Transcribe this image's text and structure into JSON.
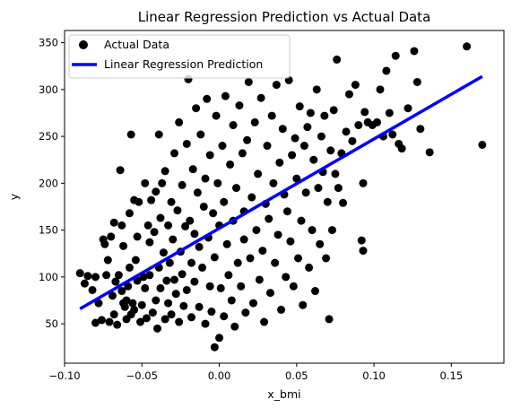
{
  "chart_data": {
    "type": "scatter",
    "title": "Linear Regression Prediction vs Actual Data",
    "xlabel": "x_bmi",
    "ylabel": "y",
    "xlim": [
      -0.1,
      0.184
    ],
    "ylim": [
      8,
      363
    ],
    "xticks": [
      -0.1,
      -0.05,
      0.0,
      0.05,
      0.1,
      0.15
    ],
    "xtick_labels": [
      "−0.10",
      "−0.05",
      "0.00",
      "0.05",
      "0.10",
      "0.15"
    ],
    "yticks": [
      50,
      100,
      150,
      200,
      250,
      300,
      350
    ],
    "ytick_labels": [
      "50",
      "100",
      "150",
      "200",
      "250",
      "300",
      "350"
    ],
    "grid": false,
    "legend": {
      "placement": "top-left",
      "entries": [
        "Actual Data",
        "Linear Regression Prediction"
      ]
    },
    "series": [
      {
        "name": "Actual Data",
        "kind": "scatter",
        "color": "#000000",
        "points": [
          [
            -0.09,
            104
          ],
          [
            -0.087,
            93
          ],
          [
            -0.085,
            101
          ],
          [
            -0.082,
            86
          ],
          [
            -0.08,
            100
          ],
          [
            -0.08,
            51
          ],
          [
            -0.078,
            72
          ],
          [
            -0.076,
            54
          ],
          [
            -0.075,
            140
          ],
          [
            -0.074,
            135
          ],
          [
            -0.073,
            102
          ],
          [
            -0.072,
            118
          ],
          [
            -0.071,
            52
          ],
          [
            -0.07,
            143
          ],
          [
            -0.069,
            80
          ],
          [
            -0.068,
            60
          ],
          [
            -0.068,
            158
          ],
          [
            -0.067,
            95
          ],
          [
            -0.066,
            49
          ],
          [
            -0.065,
            102
          ],
          [
            -0.064,
            214
          ],
          [
            -0.063,
            155
          ],
          [
            -0.063,
            85
          ],
          [
            -0.062,
            72
          ],
          [
            -0.062,
            133
          ],
          [
            -0.061,
            68
          ],
          [
            -0.06,
            75
          ],
          [
            -0.06,
            55
          ],
          [
            -0.059,
            90
          ],
          [
            -0.058,
            168
          ],
          [
            -0.058,
            110
          ],
          [
            -0.057,
            252
          ],
          [
            -0.057,
            60
          ],
          [
            -0.056,
            72
          ],
          [
            -0.055,
            182
          ],
          [
            -0.055,
            65
          ],
          [
            -0.054,
            118
          ],
          [
            -0.053,
            143
          ],
          [
            -0.053,
            96
          ],
          [
            -0.052,
            180
          ],
          [
            -0.051,
            52
          ],
          [
            -0.05,
            70
          ],
          [
            -0.049,
            100
          ],
          [
            -0.048,
            88
          ],
          [
            -0.048,
            200
          ],
          [
            -0.047,
            56
          ],
          [
            -0.046,
            155
          ],
          [
            -0.045,
            102
          ],
          [
            -0.045,
            137
          ],
          [
            -0.044,
            182
          ],
          [
            -0.043,
            62
          ],
          [
            -0.042,
            148
          ],
          [
            -0.041,
            75
          ],
          [
            -0.041,
            191
          ],
          [
            -0.04,
            45
          ],
          [
            -0.039,
            110
          ],
          [
            -0.039,
            252
          ],
          [
            -0.038,
            88
          ],
          [
            -0.038,
            163
          ],
          [
            -0.037,
            200
          ],
          [
            -0.036,
            126
          ],
          [
            -0.035,
            55
          ],
          [
            -0.035,
            213
          ],
          [
            -0.034,
            96
          ],
          [
            -0.033,
            155
          ],
          [
            -0.033,
            72
          ],
          [
            -0.032,
            115
          ],
          [
            -0.031,
            180
          ],
          [
            -0.031,
            60
          ],
          [
            -0.03,
            140
          ],
          [
            -0.029,
            232
          ],
          [
            -0.029,
            97
          ],
          [
            -0.028,
            82
          ],
          [
            -0.027,
            171
          ],
          [
            -0.026,
            265
          ],
          [
            -0.026,
            52
          ],
          [
            -0.025,
            127
          ],
          [
            -0.024,
            198
          ],
          [
            -0.024,
            103
          ],
          [
            -0.023,
            69
          ],
          [
            -0.022,
            154
          ],
          [
            -0.021,
            242
          ],
          [
            -0.021,
            86
          ],
          [
            -0.02,
            311
          ],
          [
            -0.019,
            160
          ],
          [
            -0.018,
            115
          ],
          [
            -0.018,
            57
          ],
          [
            -0.017,
            215
          ],
          [
            -0.016,
            146
          ],
          [
            -0.016,
            95
          ],
          [
            -0.015,
            280
          ],
          [
            -0.014,
            190
          ],
          [
            -0.013,
            68
          ],
          [
            -0.013,
            132
          ],
          [
            -0.012,
            252
          ],
          [
            -0.011,
            110
          ],
          [
            -0.01,
            175
          ],
          [
            -0.009,
            50
          ],
          [
            -0.009,
            205
          ],
          [
            -0.008,
            290
          ],
          [
            -0.007,
            142
          ],
          [
            -0.006,
            90
          ],
          [
            -0.006,
            230
          ],
          [
            -0.005,
            63
          ],
          [
            -0.004,
            168
          ],
          [
            -0.003,
            25
          ],
          [
            -0.003,
            121
          ],
          [
            -0.002,
            272
          ],
          [
            -0.001,
            200
          ],
          [
            0.0,
            35
          ],
          [
            0.0,
            155
          ],
          [
            0.001,
            88
          ],
          [
            0.002,
            240
          ],
          [
            0.003,
            180
          ],
          [
            0.003,
            58
          ],
          [
            0.004,
            293
          ],
          [
            0.005,
            135
          ],
          [
            0.006,
            102
          ],
          [
            0.007,
            220
          ],
          [
            0.008,
            75
          ],
          [
            0.009,
            262
          ],
          [
            0.009,
            160
          ],
          [
            0.01,
            47
          ],
          [
            0.011,
            195
          ],
          [
            0.012,
            115
          ],
          [
            0.013,
            283
          ],
          [
            0.014,
            90
          ],
          [
            0.015,
            232
          ],
          [
            0.016,
            170
          ],
          [
            0.016,
            140
          ],
          [
            0.017,
            62
          ],
          [
            0.018,
            246
          ],
          [
            0.019,
            308
          ],
          [
            0.02,
            120
          ],
          [
            0.021,
            185
          ],
          [
            0.022,
            72
          ],
          [
            0.023,
            265
          ],
          [
            0.024,
            150
          ],
          [
            0.025,
            210
          ],
          [
            0.026,
            97
          ],
          [
            0.027,
            291
          ],
          [
            0.028,
            128
          ],
          [
            0.029,
            52
          ],
          [
            0.03,
            178
          ],
          [
            0.031,
            240
          ],
          [
            0.032,
            162
          ],
          [
            0.033,
            83
          ],
          [
            0.034,
            272
          ],
          [
            0.035,
            200
          ],
          [
            0.036,
            115
          ],
          [
            0.037,
            305
          ],
          [
            0.038,
            145
          ],
          [
            0.039,
            222
          ],
          [
            0.04,
            65
          ],
          [
            0.041,
            258
          ],
          [
            0.042,
            188
          ],
          [
            0.043,
            100
          ],
          [
            0.044,
            170
          ],
          [
            0.045,
            310
          ],
          [
            0.046,
            138
          ],
          [
            0.047,
            230
          ],
          [
            0.048,
            90
          ],
          [
            0.049,
            248
          ],
          [
            0.05,
            205
          ],
          [
            0.051,
            120
          ],
          [
            0.052,
            282
          ],
          [
            0.053,
            160
          ],
          [
            0.054,
            70
          ],
          [
            0.055,
            240
          ],
          [
            0.056,
            190
          ],
          [
            0.057,
            260
          ],
          [
            0.058,
            110
          ],
          [
            0.059,
            275
          ],
          [
            0.06,
            150
          ],
          [
            0.061,
            225
          ],
          [
            0.062,
            85
          ],
          [
            0.063,
            300
          ],
          [
            0.064,
            195
          ],
          [
            0.065,
            135
          ],
          [
            0.066,
            250
          ],
          [
            0.067,
            212
          ],
          [
            0.068,
            272
          ],
          [
            0.069,
            120
          ],
          [
            0.07,
            180
          ],
          [
            0.071,
            55
          ],
          [
            0.072,
            235
          ],
          [
            0.073,
            150
          ],
          [
            0.074,
            278
          ],
          [
            0.075,
            210
          ],
          [
            0.076,
            332
          ],
          [
            0.077,
            195
          ],
          [
            0.079,
            232
          ],
          [
            0.08,
            179
          ],
          [
            0.082,
            255
          ],
          [
            0.084,
            295
          ],
          [
            0.086,
            245
          ],
          [
            0.088,
            305
          ],
          [
            0.09,
            262
          ],
          [
            0.092,
            139
          ],
          [
            0.093,
            128
          ],
          [
            0.093,
            200
          ],
          [
            0.094,
            276
          ],
          [
            0.096,
            265
          ],
          [
            0.099,
            262
          ],
          [
            0.102,
            265
          ],
          [
            0.104,
            300
          ],
          [
            0.106,
            250
          ],
          [
            0.108,
            320
          ],
          [
            0.11,
            275
          ],
          [
            0.112,
            252
          ],
          [
            0.114,
            336
          ],
          [
            0.116,
            242
          ],
          [
            0.118,
            237
          ],
          [
            0.122,
            280
          ],
          [
            0.126,
            341
          ],
          [
            0.128,
            308
          ],
          [
            0.13,
            258
          ],
          [
            0.136,
            233
          ],
          [
            0.16,
            346
          ],
          [
            0.17,
            241
          ]
        ]
      },
      {
        "name": "Linear Regression Prediction",
        "kind": "line",
        "color": "#0000ff",
        "points": [
          [
            -0.09,
            66
          ],
          [
            0.17,
            314
          ]
        ]
      }
    ]
  }
}
